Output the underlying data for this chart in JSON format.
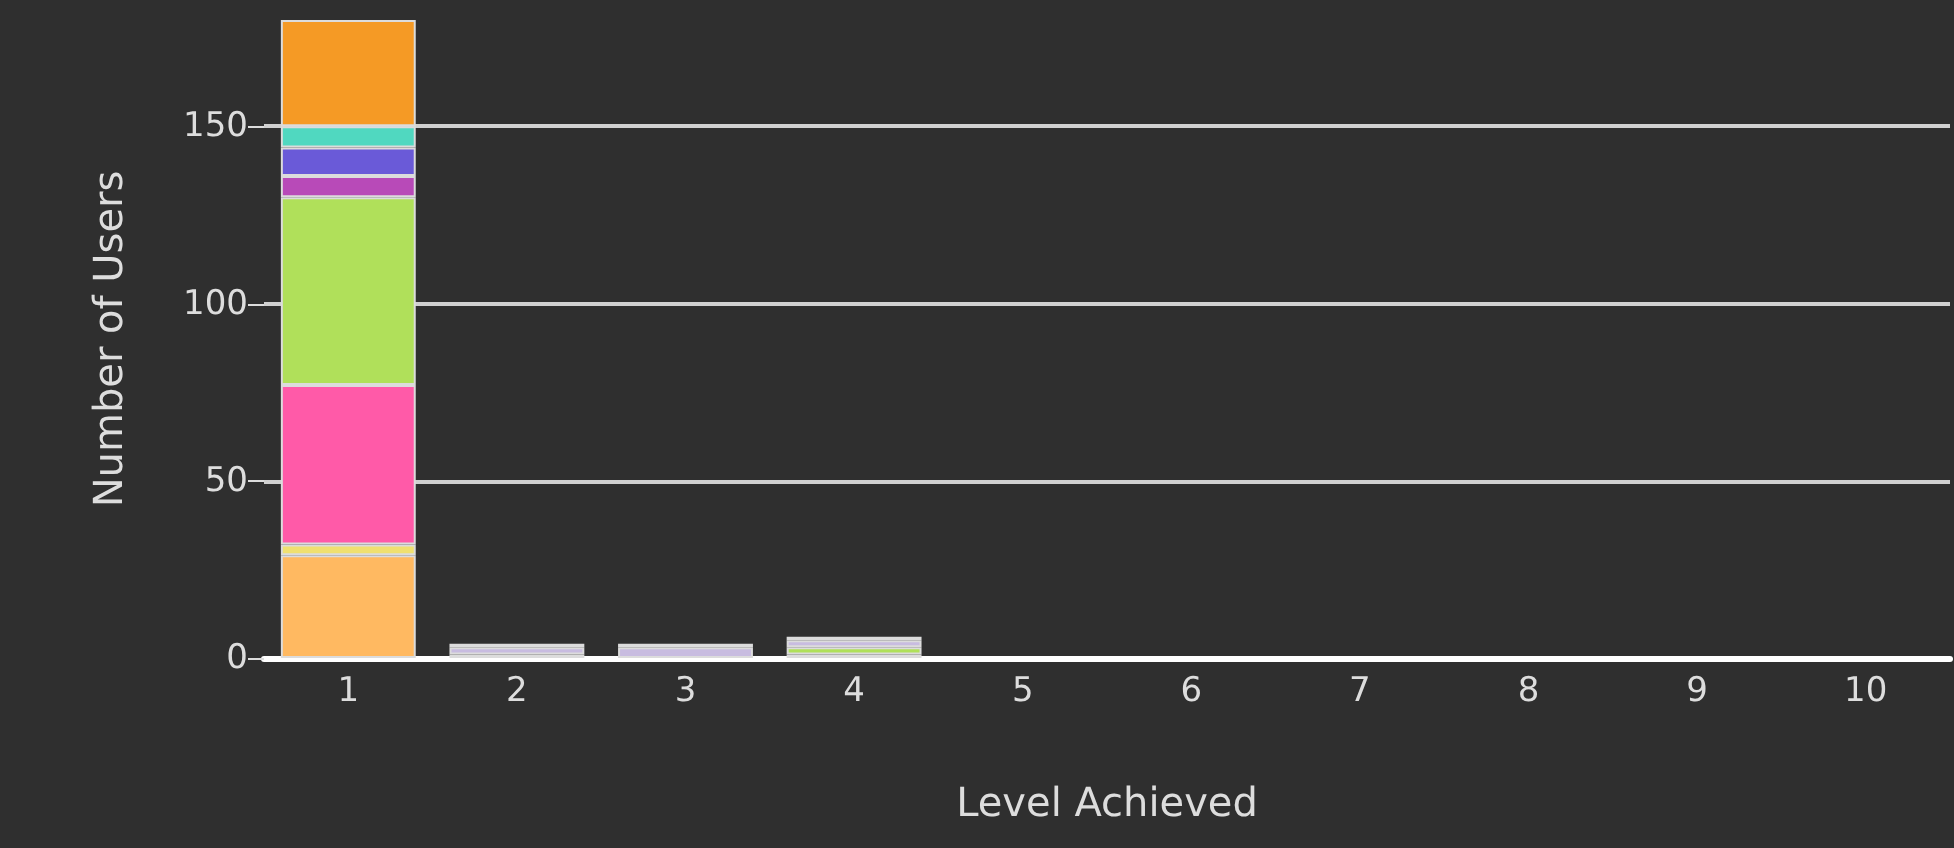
{
  "chart_data": {
    "type": "bar",
    "stacked": true,
    "xlabel": "Level Achieved",
    "ylabel": "Number of Users",
    "categories": [
      "1",
      "2",
      "3",
      "4",
      "5",
      "6",
      "7",
      "8",
      "9",
      "10"
    ],
    "series": [
      {
        "color": "#ffb961",
        "values": [
          29,
          null,
          null,
          1,
          null,
          null,
          null,
          null,
          null,
          null
        ]
      },
      {
        "color": "#f0e070",
        "values": [
          3,
          null,
          null,
          null,
          null,
          null,
          null,
          null,
          null,
          null
        ]
      },
      {
        "color": "#ff5aa8",
        "values": [
          45,
          1,
          null,
          null,
          null,
          null,
          null,
          null,
          null,
          null
        ]
      },
      {
        "color": "#b0e05a",
        "values": [
          53,
          null,
          null,
          2,
          null,
          null,
          null,
          null,
          null,
          null
        ]
      },
      {
        "color": "#c8bce0",
        "values": [
          null,
          2,
          3,
          2,
          null,
          null,
          null,
          null,
          null,
          null
        ]
      },
      {
        "color": "#b84ab8",
        "values": [
          6,
          null,
          null,
          null,
          null,
          null,
          null,
          null,
          null,
          null
        ]
      },
      {
        "color": "#6a5ad8",
        "values": [
          8,
          null,
          null,
          null,
          null,
          null,
          null,
          null,
          null,
          null
        ]
      },
      {
        "color": "#50d8c0",
        "values": [
          6,
          null,
          null,
          null,
          null,
          null,
          null,
          null,
          null,
          null
        ]
      },
      {
        "color": "#f59a25",
        "values": [
          30,
          null,
          null,
          null,
          null,
          null,
          null,
          null,
          null,
          null
        ]
      },
      {
        "color": "#c8a890",
        "values": [
          null,
          1,
          1,
          1,
          null,
          null,
          null,
          null,
          null,
          null
        ]
      }
    ],
    "ylim": [
      0,
      180
    ],
    "yticks": [
      0,
      50,
      100,
      150
    ],
    "grid": "y"
  }
}
